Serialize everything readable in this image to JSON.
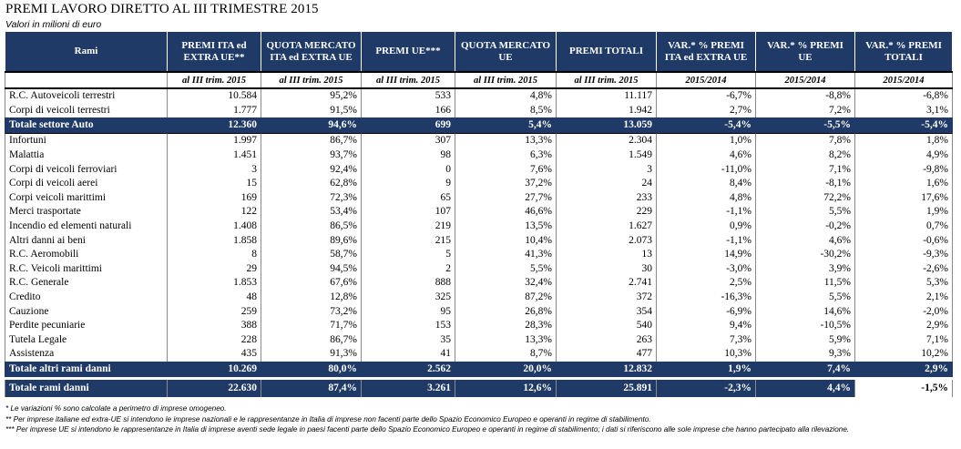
{
  "title": "PREMI LAVORO DIRETTO AL III TRIMESTRE 2015",
  "subtitle": "Valori in milioni di euro",
  "columns": [
    "Rami",
    "PREMI ITA ed EXTRA UE**",
    "QUOTA MERCATO ITA ed EXTRA UE",
    "PREMI UE***",
    "QUOTA MERCATO UE",
    "PREMI TOTALI",
    "VAR.* % PREMI ITA ed EXTRA UE",
    "VAR.* % PREMI UE",
    "VAR.* % PREMI TOTALI"
  ],
  "subheaders": [
    "",
    "al III trim. 2015",
    "al III trim. 2015",
    "al III trim. 2015",
    "al III trim. 2015",
    "al III trim. 2015",
    "2015/2014",
    "2015/2014",
    "2015/2014"
  ],
  "auto_rows": [
    [
      "R.C. Autoveicoli terrestri",
      "10.584",
      "95,2%",
      "533",
      "4,8%",
      "11.117",
      "-6,7%",
      "-8,8%",
      "-6,8%"
    ],
    [
      "Corpi di veicoli terrestri",
      "1.777",
      "91,5%",
      "166",
      "8,5%",
      "1.942",
      "2,7%",
      "7,2%",
      "3,1%"
    ]
  ],
  "total_auto": [
    "Totale settore Auto",
    "12.360",
    "94,6%",
    "699",
    "5,4%",
    "13.059",
    "-5,4%",
    "-5,5%",
    "-5,4%"
  ],
  "other_rows": [
    [
      "Infortuni",
      "1.997",
      "86,7%",
      "307",
      "13,3%",
      "2.304",
      "1,0%",
      "7,8%",
      "1,8%"
    ],
    [
      "Malattia",
      "1.451",
      "93,7%",
      "98",
      "6,3%",
      "1.549",
      "4,6%",
      "8,2%",
      "4,9%"
    ],
    [
      "Corpi di veicoli ferroviari",
      "3",
      "92,4%",
      "0",
      "7,6%",
      "3",
      "-11,0%",
      "7,1%",
      "-9,8%"
    ],
    [
      "Corpi di veicoli aerei",
      "15",
      "62,8%",
      "9",
      "37,2%",
      "24",
      "8,4%",
      "-8,1%",
      "1,6%"
    ],
    [
      "Corpi veicoli marittimi",
      "169",
      "72,3%",
      "65",
      "27,7%",
      "233",
      "4,8%",
      "72,2%",
      "17,6%"
    ],
    [
      "Merci trasportate",
      "122",
      "53,4%",
      "107",
      "46,6%",
      "229",
      "-1,1%",
      "5,5%",
      "1,9%"
    ],
    [
      "Incendio ed elementi naturali",
      "1.408",
      "86,5%",
      "219",
      "13,5%",
      "1.627",
      "0,9%",
      "-0,2%",
      "0,7%"
    ],
    [
      "Altri danni ai beni",
      "1.858",
      "89,6%",
      "215",
      "10,4%",
      "2.073",
      "-1,1%",
      "4,6%",
      "-0,6%"
    ],
    [
      "R.C. Aeromobili",
      "8",
      "58,7%",
      "5",
      "41,3%",
      "13",
      "14,9%",
      "-30,2%",
      "-9,3%"
    ],
    [
      "R.C. Veicoli marittimi",
      "29",
      "94,5%",
      "2",
      "5,5%",
      "30",
      "-3,0%",
      "3,9%",
      "-2,6%"
    ],
    [
      "R.C. Generale",
      "1.853",
      "67,6%",
      "888",
      "32,4%",
      "2.741",
      "2,5%",
      "11,5%",
      "5,3%"
    ],
    [
      "Credito",
      "48",
      "12,8%",
      "325",
      "87,2%",
      "372",
      "-16,3%",
      "5,5%",
      "2,1%"
    ],
    [
      "Cauzione",
      "259",
      "73,2%",
      "95",
      "26,8%",
      "354",
      "-6,9%",
      "14,6%",
      "-2,0%"
    ],
    [
      "Perdite pecuniarie",
      "388",
      "71,7%",
      "153",
      "28,3%",
      "540",
      "9,4%",
      "-10,5%",
      "2,9%"
    ],
    [
      "Tutela Legale",
      "228",
      "86,7%",
      "35",
      "13,3%",
      "263",
      "7,3%",
      "5,9%",
      "7,1%"
    ],
    [
      "Assistenza",
      "435",
      "91,3%",
      "41",
      "8,7%",
      "477",
      "10,3%",
      "9,3%",
      "10,2%"
    ]
  ],
  "total_other": [
    "Totale altri rami danni",
    "10.269",
    "80,0%",
    "2.562",
    "20,0%",
    "12.832",
    "1,9%",
    "7,4%",
    "2,9%"
  ],
  "total_all": [
    "Totale rami danni",
    "22.630",
    "87,4%",
    "3.261",
    "12,6%",
    "25.891",
    "-2,3%",
    "4,4%",
    "-1,5%"
  ],
  "notes": [
    "* Le variazioni % sono calcolate a perimetro di imprese omogeneo.",
    "** Per imprese italiane ed extra-UE si intendono le imprese nazionali e le rappresentanze in Italia di imprese non facenti parte dello Spazio Economico Europeo e operanti in regime di stabilimento.",
    "*** Per imprese UE si intendono le rappresentanze in Italia di imprese aventi sede legale in paesi facenti parte dello Spazio Economico Europeo e operanti in regime di stabilimento; i dati si riferiscono alle sole imprese che hanno partecipato alla rilevazione."
  ],
  "colors": {
    "header_bg": "#1f3a66",
    "header_text": "#ffffff"
  }
}
